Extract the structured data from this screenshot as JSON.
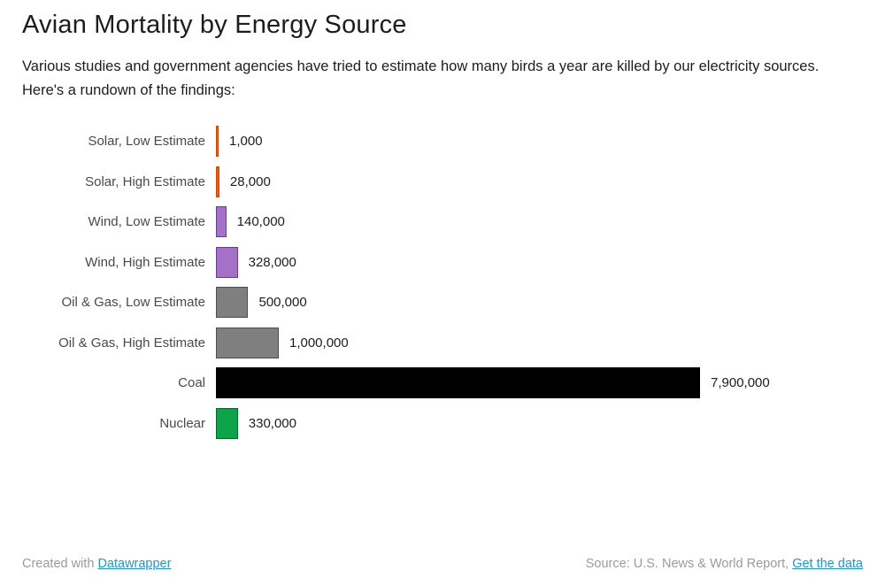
{
  "header": {
    "title": "Avian Mortality by Energy Source",
    "description": "Various studies and government agencies have tried to estimate how many birds a year are killed by our electricity sources. Here's a rundown of the findings:"
  },
  "chart_data": {
    "type": "bar",
    "orientation": "horizontal",
    "title": "Avian Mortality by Energy Source",
    "categories": [
      "Solar, Low Estimate",
      "Solar, High Estimate",
      "Wind, Low Estimate",
      "Wind, High Estimate",
      "Oil & Gas, Low Estimate",
      "Oil & Gas, High Estimate",
      "Coal",
      "Nuclear"
    ],
    "values": [
      1000,
      28000,
      140000,
      328000,
      500000,
      1000000,
      7900000,
      330000
    ],
    "value_labels": [
      "1,000",
      "28,000",
      "140,000",
      "328,000",
      "500,000",
      "1,000,000",
      "7,900,000",
      "330,000"
    ],
    "bar_colors": [
      "#ef5c10",
      "#ef5c10",
      "#a470c8",
      "#a470c8",
      "#7f7f7f",
      "#7f7f7f",
      "#000000",
      "#0da449"
    ],
    "bar_border_colors": [
      "#c74a0b",
      "#c74a0b",
      "#663d94",
      "#663d94",
      "#4d4d4d",
      "#4d4d4d",
      "#000000",
      "#01682c"
    ],
    "xlim": [
      0,
      7900000
    ],
    "grid": false,
    "legend": false,
    "xlabel": "",
    "ylabel": ""
  },
  "footer": {
    "created_with": "Created with",
    "tool_link": "Datawrapper",
    "source_label": "Source: U.S. News & World Report,",
    "data_link": "Get the data",
    "link_color": "#2596be"
  }
}
